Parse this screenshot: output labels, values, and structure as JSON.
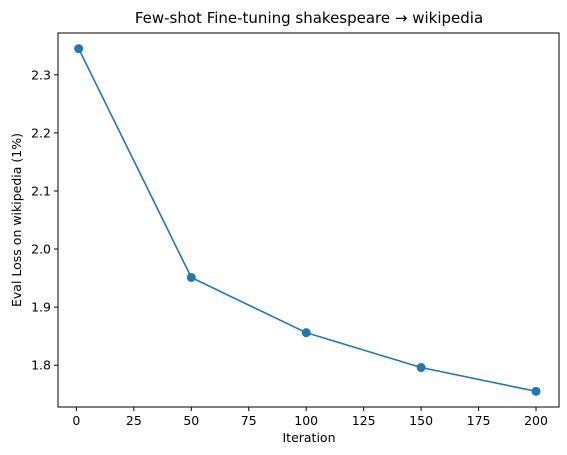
{
  "chart_data": {
    "type": "line",
    "title": "Few-shot Fine-tuning shakespeare → wikipedia",
    "xlabel": "Iteration",
    "ylabel": "Eval Loss on wikipedia (1%)",
    "x": [
      1,
      50,
      100,
      150,
      200
    ],
    "series": [
      {
        "values": [
          2.345,
          1.951,
          1.856,
          1.796,
          1.755
        ],
        "color": "#1f77b4",
        "marker": "circle"
      }
    ],
    "xlim": [
      -8,
      210
    ],
    "ylim": [
      1.728,
      2.372
    ],
    "xticks": [
      0,
      25,
      50,
      75,
      100,
      125,
      150,
      175,
      200
    ],
    "yticks": [
      1.8,
      1.9,
      2.0,
      2.1,
      2.2,
      2.3
    ],
    "xtick_labels": [
      "0",
      "25",
      "50",
      "75",
      "100",
      "125",
      "150",
      "175",
      "200"
    ],
    "ytick_labels": [
      "1.8",
      "1.9",
      "2.0",
      "2.1",
      "2.2",
      "2.3"
    ],
    "grid": false,
    "legend": "none"
  }
}
